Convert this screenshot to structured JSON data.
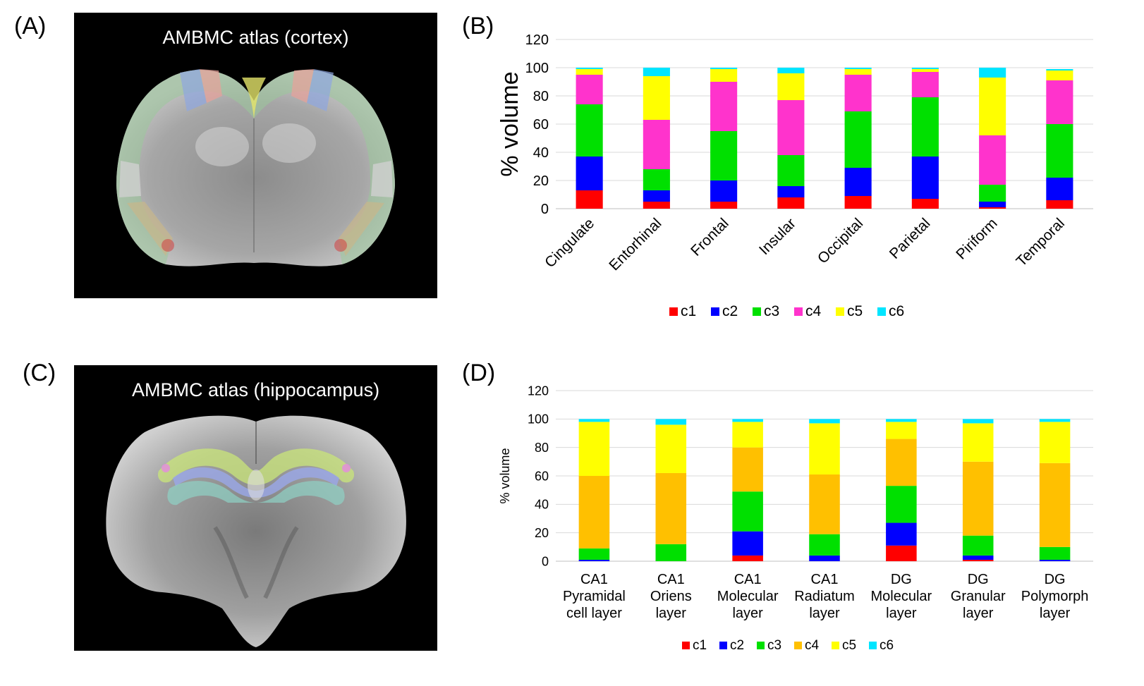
{
  "panels": {
    "a": "(A)",
    "b": "(B)",
    "c": "(C)",
    "d": "(D)"
  },
  "images": {
    "cortex_title": "AMBMC atlas (cortex)",
    "hippocampus_title": "AMBMC atlas (hippocampus)"
  },
  "colors": {
    "c1": "#ff0000",
    "c2": "#0000ff",
    "c3": "#00e000",
    "c4_cortex": "#ff33cc",
    "c4_hippocampus": "#ffc000",
    "c5": "#ffff00",
    "c6": "#00e5ff"
  },
  "chart_data": [
    {
      "id": "B",
      "type": "bar",
      "stacked": true,
      "title": "",
      "xlabel": "",
      "ylabel": "% volume",
      "ylim": [
        0,
        120
      ],
      "yticks": [
        0,
        20,
        40,
        60,
        80,
        100,
        120
      ],
      "grid": true,
      "legend_position": "bottom",
      "categories": [
        "Cingulate",
        "Entorhinal",
        "Frontal",
        "Insular",
        "Occipital",
        "Parietal",
        "Piriform",
        "Temporal"
      ],
      "series": [
        {
          "name": "c1",
          "values": [
            13,
            5,
            5,
            8,
            9,
            7,
            1,
            6
          ]
        },
        {
          "name": "c2",
          "values": [
            24,
            8,
            15,
            8,
            20,
            30,
            4,
            16
          ]
        },
        {
          "name": "c3",
          "values": [
            37,
            15,
            35,
            22,
            40,
            42,
            12,
            38
          ]
        },
        {
          "name": "c4",
          "values": [
            21,
            35,
            35,
            39,
            26,
            18,
            35,
            31
          ]
        },
        {
          "name": "c5",
          "values": [
            4,
            31,
            9,
            19,
            4,
            2,
            41,
            7
          ]
        },
        {
          "name": "c6",
          "values": [
            1,
            6,
            1,
            4,
            1,
            1,
            7,
            1
          ]
        }
      ]
    },
    {
      "id": "D",
      "type": "bar",
      "stacked": true,
      "title": "",
      "xlabel": "",
      "ylabel": "% volume",
      "ylim": [
        0,
        120
      ],
      "yticks": [
        0,
        20,
        40,
        60,
        80,
        100,
        120
      ],
      "grid": true,
      "legend_position": "bottom",
      "categories": [
        [
          "CA1",
          "Pyramidal",
          "cell layer"
        ],
        [
          "CA1",
          "Oriens",
          "layer"
        ],
        [
          "CA1",
          "Molecular",
          "layer"
        ],
        [
          "CA1",
          "Radiatum",
          "layer"
        ],
        [
          "DG",
          "Molecular",
          "layer"
        ],
        [
          "DG",
          "Granular",
          "layer"
        ],
        [
          "DG",
          "Polymorph",
          "layer"
        ]
      ],
      "series": [
        {
          "name": "c1",
          "values": [
            0,
            0,
            4,
            0,
            11,
            1,
            0
          ]
        },
        {
          "name": "c2",
          "values": [
            1,
            0,
            17,
            4,
            16,
            3,
            1
          ]
        },
        {
          "name": "c3",
          "values": [
            8,
            12,
            28,
            15,
            26,
            14,
            9
          ]
        },
        {
          "name": "c4",
          "values": [
            51,
            50,
            31,
            42,
            33,
            52,
            59
          ]
        },
        {
          "name": "c5",
          "values": [
            38,
            34,
            18,
            36,
            12,
            27,
            29
          ]
        },
        {
          "name": "c6",
          "values": [
            2,
            4,
            2,
            3,
            2,
            3,
            2
          ]
        }
      ]
    }
  ]
}
